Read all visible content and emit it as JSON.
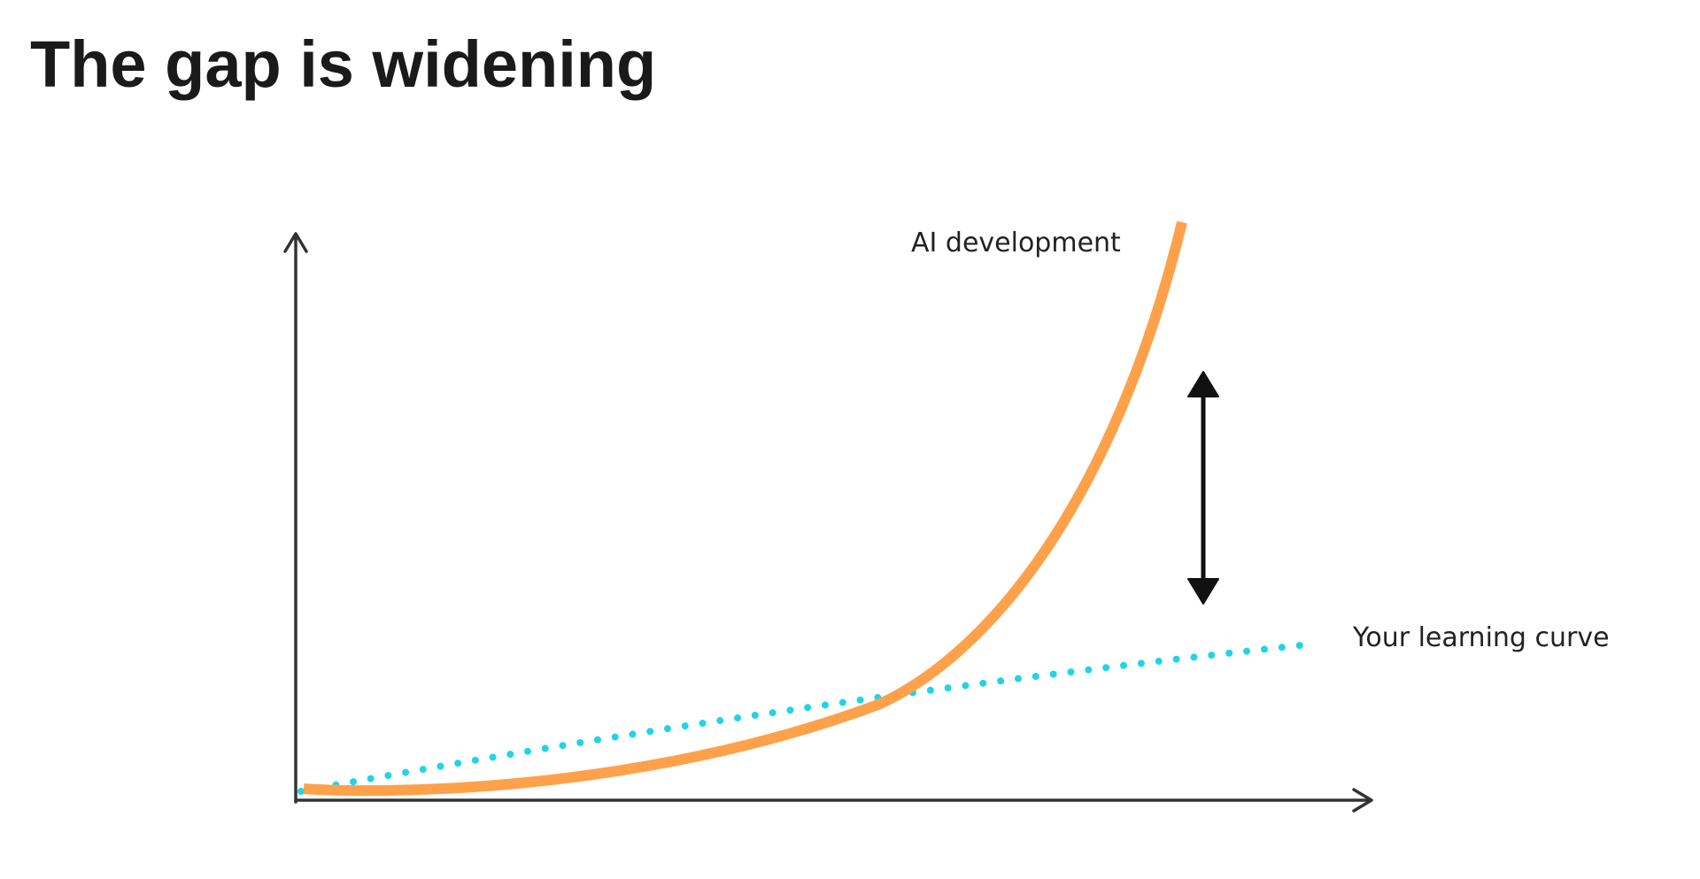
{
  "header": {
    "title": "The gap is widening"
  },
  "labels": {
    "ai": "AI development",
    "learning": "Your learning curve"
  }
}
